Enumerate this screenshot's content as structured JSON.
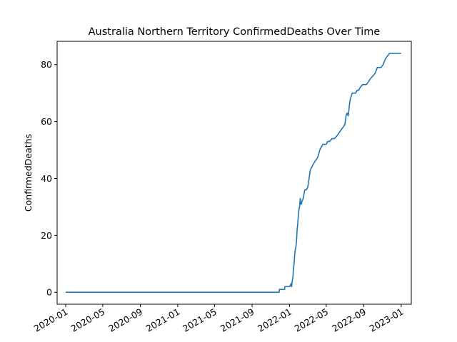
{
  "chart_data": {
    "type": "line",
    "title": "Australia Northern Territory ConfirmedDeaths Over Time",
    "xlabel": "",
    "ylabel": "ConfirmedDeaths",
    "x_type": "date",
    "xlim": [
      "2019-12-04",
      "2023-02-03"
    ],
    "ylim": [
      -4.2,
      88.2
    ],
    "x_ticks": [
      "2020-01",
      "2020-05",
      "2020-09",
      "2021-01",
      "2021-05",
      "2021-09",
      "2022-01",
      "2022-05",
      "2022-09",
      "2023-01"
    ],
    "y_ticks": [
      0,
      20,
      40,
      60,
      80
    ],
    "grid": false,
    "legend": false,
    "colors": {
      "series": "#1f77b4",
      "axes": "#000000",
      "background": "#ffffff"
    },
    "series": [
      {
        "x": [
          "2020-01-01",
          "2021-11-28",
          "2021-11-29",
          "2021-12-16",
          "2021-12-17",
          "2022-01-02",
          "2022-01-06",
          "2022-01-08",
          "2022-01-10",
          "2022-01-12",
          "2022-01-14",
          "2022-01-16",
          "2022-01-18",
          "2022-01-20",
          "2022-01-22",
          "2022-01-24",
          "2022-01-26",
          "2022-01-28",
          "2022-01-30",
          "2022-02-01",
          "2022-02-03",
          "2022-02-05",
          "2022-02-07",
          "2022-02-09",
          "2022-02-11",
          "2022-02-15",
          "2022-02-20",
          "2022-02-25",
          "2022-03-02",
          "2022-03-06",
          "2022-03-10",
          "2022-03-15",
          "2022-03-20",
          "2022-03-25",
          "2022-04-01",
          "2022-04-05",
          "2022-04-10",
          "2022-04-15",
          "2022-04-20",
          "2022-04-25",
          "2022-05-01",
          "2022-05-06",
          "2022-05-12",
          "2022-05-20",
          "2022-05-28",
          "2022-06-05",
          "2022-06-12",
          "2022-06-18",
          "2022-06-25",
          "2022-07-01",
          "2022-07-05",
          "2022-07-08",
          "2022-07-12",
          "2022-07-16",
          "2022-07-19",
          "2022-07-22",
          "2022-07-25",
          "2022-08-01",
          "2022-08-05",
          "2022-08-10",
          "2022-08-15",
          "2022-08-20",
          "2022-08-28",
          "2022-09-03",
          "2022-09-09",
          "2022-09-16",
          "2022-09-22",
          "2022-09-30",
          "2022-10-08",
          "2022-10-15",
          "2022-10-20",
          "2022-10-27",
          "2022-11-03",
          "2022-11-10",
          "2022-11-17",
          "2022-11-24",
          "2022-12-01",
          "2022-12-08",
          "2022-12-15",
          "2022-12-22",
          "2022-12-29",
          "2023-01-01"
        ],
        "y": [
          0,
          0,
          1,
          1,
          2,
          2,
          3,
          2,
          4,
          5,
          8,
          10,
          13,
          15,
          16,
          18,
          22,
          24,
          27,
          29,
          30,
          33,
          31,
          31,
          32,
          33,
          36,
          36,
          37,
          40,
          43,
          44,
          45,
          46,
          47,
          48,
          50,
          51,
          52,
          52,
          52,
          53,
          53,
          54,
          54,
          55,
          56,
          57,
          58,
          59,
          62,
          63,
          62,
          66,
          68,
          69,
          70,
          70,
          70,
          71,
          71,
          72,
          73,
          73,
          73,
          74,
          75,
          76,
          77,
          79,
          79,
          79,
          80,
          82,
          83,
          84,
          84,
          84,
          84,
          84,
          84,
          84
        ]
      }
    ]
  }
}
